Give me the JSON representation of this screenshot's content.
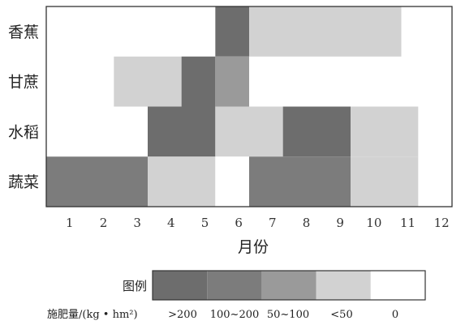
{
  "chart_data": {
    "type": "heatmap",
    "xlabel": "月份",
    "x": [
      "1",
      "2",
      "3",
      "4",
      "5",
      "6",
      "7",
      "8",
      "9",
      "10",
      "11",
      "12"
    ],
    "categories": [
      "香蕉",
      "甘蔗",
      "水稻",
      "蔬菜"
    ],
    "levels": [
      {
        "key": "200+",
        "label": ">200",
        "color": "#6d6d6d"
      },
      {
        "key": "100-200",
        "label": "100~200",
        "color": "#7c7c7c"
      },
      {
        "key": "50-100",
        "label": "50~100",
        "color": "#9a9a9a"
      },
      {
        "key": "lt50",
        "label": "<50",
        "color": "#d2d2d2"
      },
      {
        "key": "0",
        "label": "0",
        "color": "#ffffff"
      }
    ],
    "rows": [
      {
        "name": "香蕉",
        "segments": [
          {
            "start": 6,
            "end": 6,
            "level": "200+"
          },
          {
            "start": 7,
            "end": 10.5,
            "level": "lt50"
          }
        ]
      },
      {
        "name": "甘蔗",
        "segments": [
          {
            "start": 3,
            "end": 4,
            "level": "lt50"
          },
          {
            "start": 5,
            "end": 5,
            "level": "200+"
          },
          {
            "start": 6,
            "end": 6,
            "level": "50-100"
          }
        ]
      },
      {
        "name": "水稻",
        "segments": [
          {
            "start": 4,
            "end": 5,
            "level": "200+"
          },
          {
            "start": 6,
            "end": 7,
            "level": "lt50"
          },
          {
            "start": 8,
            "end": 9,
            "level": "200+"
          },
          {
            "start": 10,
            "end": 11,
            "level": "lt50"
          }
        ]
      },
      {
        "name": "蔬菜",
        "segments": [
          {
            "start": 1,
            "end": 3,
            "level": "100-200"
          },
          {
            "start": 4,
            "end": 5,
            "level": "lt50"
          },
          {
            "start": 6,
            "end": 6,
            "level": "0"
          },
          {
            "start": 7,
            "end": 9,
            "level": "100-200"
          },
          {
            "start": 10,
            "end": 11,
            "level": "lt50"
          }
        ]
      }
    ],
    "legend": {
      "title": "图例",
      "quantity_label": "施肥量/(kg • hm²)",
      "placement": "bottom"
    }
  }
}
